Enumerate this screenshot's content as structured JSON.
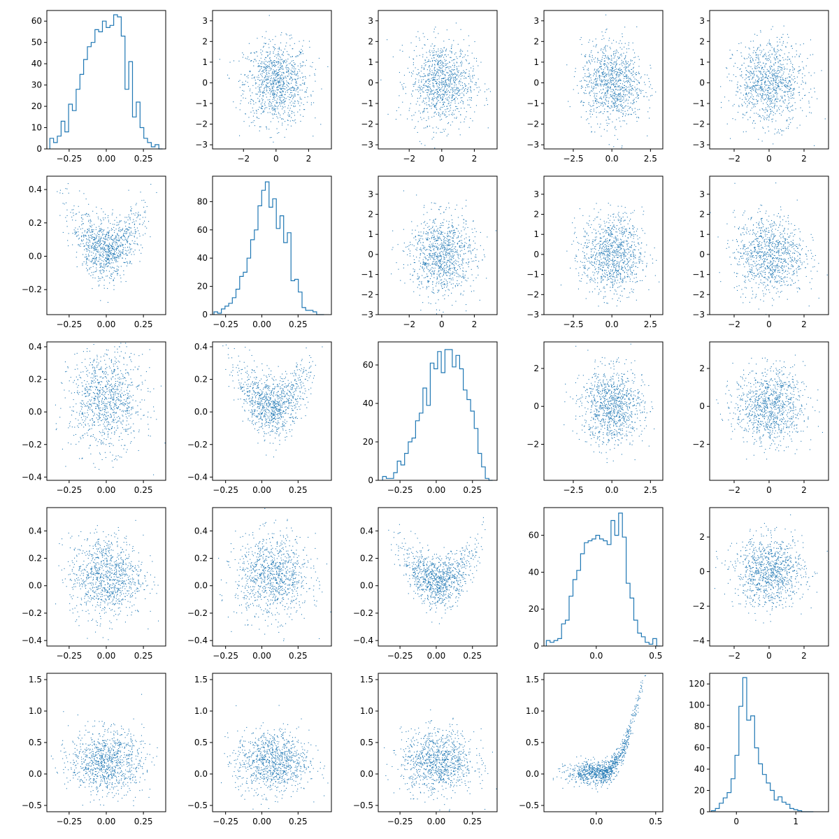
{
  "colors": {
    "series": "#1f77b4",
    "axis": "#000000",
    "background": "#ffffff"
  },
  "chart_data": {
    "type": "scatter",
    "layout": "pairplot 5x5 grid: histograms on the diagonal, scatter plots off-diagonal",
    "grid": false,
    "variables": [
      {
        "xlim": [
          -0.4,
          0.4
        ],
        "xticks": [
          -0.25,
          0.0,
          0.25
        ],
        "xtick_labels": [
          "-0.25",
          "0.00",
          "0.25"
        ]
      },
      {
        "xlim": [
          -0.34,
          0.48
        ],
        "xticks": [
          -0.25,
          0.0,
          0.25
        ],
        "xtick_labels": [
          "-0.25",
          "0.00",
          "0.25"
        ]
      },
      {
        "xlim": [
          -0.4,
          0.42
        ],
        "xticks": [
          -0.25,
          0.0,
          0.25
        ],
        "xtick_labels": [
          "-0.25",
          "0.00",
          "0.25"
        ]
      },
      {
        "xlim": [
          -0.44,
          0.56
        ],
        "xticks": [
          0.0,
          0.5
        ],
        "xtick_labels": [
          "0.0",
          "0.5"
        ]
      },
      {
        "xlim": [
          -0.45,
          1.55
        ],
        "xticks": [
          0,
          1
        ],
        "xtick_labels": [
          "0",
          "1"
        ]
      }
    ],
    "scatter_axes": {
      "column_x": [
        {
          "xlim": [
            -3.0,
            3.8
          ],
          "xticks": [
            -2,
            0,
            2
          ],
          "xtick_labels": [
            "-2",
            "0",
            "2"
          ]
        },
        {
          "xlim": [
            -3.9,
            3.4
          ],
          "xticks": [
            -2,
            0,
            2
          ],
          "xtick_labels": [
            "-2",
            "0",
            "2"
          ]
        },
        {
          "xlim": [
            -3.9,
            3.4
          ],
          "xticks": [
            -2,
            0,
            2
          ],
          "xtick_labels": [
            "-2",
            "0",
            "2"
          ]
        },
        {
          "xlim": [
            -4.4,
            3.3
          ],
          "xticks": [
            -2.5,
            0.0,
            2.5
          ],
          "xtick_labels": [
            "-2.5",
            "0.0",
            "2.5"
          ]
        },
        {
          "xlim": [
            -3.4,
            3.4
          ],
          "xticks": [
            -2,
            0,
            2
          ],
          "xtick_labels": [
            "-2",
            "0",
            "2"
          ]
        }
      ],
      "row_y": [
        {
          "ylim": [
            -3.2,
            3.5
          ],
          "yticks": [
            -3,
            -2,
            -1,
            0,
            1,
            2,
            3
          ],
          "ytick_labels": [
            "-3",
            "-2",
            "-1",
            "0",
            "1",
            "2",
            "3"
          ]
        },
        {
          "ylim": [
            -3.0,
            3.9
          ],
          "yticks": [
            -3,
            -2,
            -1,
            0,
            1,
            2,
            3
          ],
          "ytick_labels": [
            "-3",
            "-2",
            "-1",
            "0",
            "1",
            "2",
            "3"
          ]
        },
        {
          "ylim": [
            -3.9,
            3.4
          ],
          "yticks": [
            -2,
            0,
            2
          ],
          "ytick_labels": [
            "-2",
            "0",
            "2"
          ]
        },
        {
          "ylim": [
            -4.3,
            3.7
          ],
          "yticks": [
            -4,
            -2,
            0,
            2
          ],
          "ytick_labels": [
            "-4",
            "-2",
            "0",
            "2"
          ]
        },
        {
          "ylim": [
            -0.6,
            1.6
          ],
          "yticks": [
            -0.5,
            0.0,
            0.5,
            1.0,
            1.5
          ],
          "ytick_labels": [
            "-0.5",
            "0.0",
            "0.5",
            "1.0",
            "1.5"
          ]
        }
      ],
      "row_y_lower": [
        null,
        {
          "ylim": [
            -0.35,
            0.48
          ],
          "yticks": [
            -0.2,
            0.0,
            0.2,
            0.4
          ],
          "ytick_labels": [
            "-0.2",
            "0.0",
            "0.2",
            "0.4"
          ]
        },
        {
          "ylim": [
            -0.42,
            0.43
          ],
          "yticks": [
            -0.4,
            -0.2,
            0.0,
            0.2,
            0.4
          ],
          "ytick_labels": [
            "-0.4",
            "-0.2",
            "0.0",
            "0.2",
            "0.4"
          ]
        },
        {
          "ylim": [
            -0.44,
            0.57
          ],
          "yticks": [
            -0.4,
            -0.2,
            0.0,
            0.2,
            0.4
          ],
          "ytick_labels": [
            "-0.4",
            "-0.2",
            "0.0",
            "0.2",
            "0.4"
          ]
        },
        {
          "ylim": [
            -0.6,
            1.6
          ],
          "yticks": [
            -0.5,
            0.0,
            0.5,
            1.0,
            1.5
          ],
          "ytick_labels": [
            "-0.5",
            "0.0",
            "0.5",
            "1.0",
            "1.5"
          ]
        }
      ]
    },
    "histograms": [
      {
        "variable": 0,
        "ylim": [
          0,
          65
        ],
        "yticks": [
          0,
          10,
          20,
          30,
          40,
          50,
          60
        ],
        "ytick_labels": [
          "0",
          "10",
          "20",
          "30",
          "40",
          "50",
          "60"
        ],
        "bin_start": -0.38,
        "bin_width": 0.0253,
        "counts": [
          5,
          3,
          6,
          13,
          8,
          21,
          18,
          28,
          35,
          42,
          48,
          50,
          56,
          55,
          60,
          57,
          58,
          63,
          62,
          53,
          28,
          41,
          15,
          22,
          10,
          5,
          3,
          1,
          2,
          0
        ]
      },
      {
        "variable": 1,
        "ylim": [
          0,
          98
        ],
        "yticks": [
          0,
          20,
          40,
          60,
          80
        ],
        "ytick_labels": [
          "0",
          "20",
          "40",
          "60",
          "80"
        ],
        "bin_start": -0.33,
        "bin_width": 0.0253,
        "counts": [
          2,
          1,
          4,
          6,
          8,
          12,
          18,
          27,
          30,
          40,
          53,
          60,
          77,
          88,
          94,
          76,
          82,
          61,
          70,
          51,
          58,
          24,
          25,
          16,
          5,
          3,
          3,
          2,
          0,
          0
        ]
      },
      {
        "variable": 2,
        "ylim": [
          0,
          72
        ],
        "yticks": [
          0,
          20,
          40,
          60
        ],
        "ytick_labels": [
          "0",
          "20",
          "40",
          "60"
        ],
        "bin_start": -0.37,
        "bin_width": 0.0253,
        "counts": [
          2,
          1,
          1,
          4,
          10,
          8,
          14,
          20,
          22,
          31,
          35,
          48,
          39,
          61,
          58,
          67,
          56,
          68,
          68,
          59,
          65,
          58,
          47,
          42,
          36,
          27,
          14,
          7,
          1,
          0
        ]
      },
      {
        "variable": 3,
        "ylim": [
          0,
          75
        ],
        "yticks": [
          0,
          20,
          40,
          60
        ],
        "ytick_labels": [
          "0",
          "20",
          "40",
          "60"
        ],
        "bin_start": -0.42,
        "bin_width": 0.032,
        "counts": [
          3,
          2,
          3,
          4,
          12,
          14,
          27,
          36,
          41,
          50,
          56,
          57,
          58,
          60,
          58,
          57,
          55,
          68,
          60,
          72,
          59,
          34,
          26,
          14,
          7,
          5,
          2,
          1,
          4,
          0
        ]
      },
      {
        "variable": 4,
        "ylim": [
          0,
          130
        ],
        "yticks": [
          0,
          20,
          40,
          60,
          80,
          100,
          120
        ],
        "ytick_labels": [
          "0",
          "20",
          "40",
          "60",
          "80",
          "100",
          "120"
        ],
        "bin_start": -0.42,
        "bin_width": 0.066,
        "counts": [
          1,
          3,
          8,
          13,
          18,
          31,
          53,
          99,
          126,
          86,
          90,
          60,
          45,
          35,
          27,
          20,
          11,
          14,
          9,
          7,
          3,
          2,
          1,
          0,
          0,
          0
        ]
      }
    ],
    "scatter_points_per_panel": 1000,
    "scatter_shape": {
      "row1_vs_col0": "U / V shape: y rises toward both ends of x",
      "row2_vs_col1": "V shape",
      "row3_vs_col2": "V shape opening upward",
      "row4_vs_col3": "parabolic curve rising steeply for x > 0.2",
      "other_pairs": "isotropic round clouds"
    }
  }
}
